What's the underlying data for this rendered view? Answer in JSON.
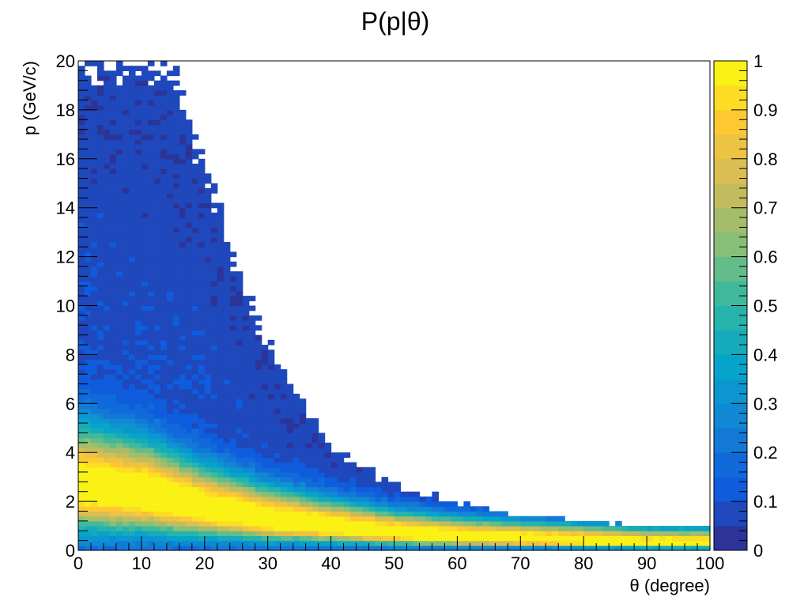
{
  "chart_data": {
    "type": "heatmap",
    "title": "P(p|θ)",
    "xlabel": "θ (degree)",
    "ylabel": "p (GeV/c)",
    "xlim": [
      0,
      100
    ],
    "ylim": [
      0,
      20
    ],
    "x_ticks": [
      0,
      10,
      20,
      30,
      40,
      50,
      60,
      70,
      80,
      90,
      100
    ],
    "y_ticks": [
      0,
      2,
      4,
      6,
      8,
      10,
      12,
      14,
      16,
      18,
      20
    ],
    "colorbar": {
      "min": 0,
      "max": 1,
      "ticks": [
        0,
        0.1,
        0.2,
        0.3,
        0.4,
        0.5,
        0.6,
        0.7,
        0.8,
        0.9,
        1
      ],
      "tick_labels": [
        "0",
        "0.1",
        "0.2",
        "0.3",
        "0.4",
        "0.5",
        "0.6",
        "0.7",
        "0.8",
        "0.9",
        "1"
      ],
      "levels": 20,
      "colormap": "kBird"
    },
    "bins": {
      "x": 100,
      "y": 100
    },
    "grid": false,
    "description_of_values": {
      "peak_momentum_at_theta": [
        {
          "theta": 0,
          "p": 2.6
        },
        {
          "theta": 10,
          "p": 2.3
        },
        {
          "theta": 20,
          "p": 1.7
        },
        {
          "theta": 30,
          "p": 1.25
        },
        {
          "theta": 40,
          "p": 0.95
        },
        {
          "theta": 50,
          "p": 0.7
        },
        {
          "theta": 60,
          "p": 0.55
        },
        {
          "theta": 70,
          "p": 0.45
        },
        {
          "theta": 80,
          "p": 0.38
        },
        {
          "theta": 90,
          "p": 0.3
        },
        {
          "theta": 100,
          "p": 0.28
        }
      ],
      "max_populated_p_at_theta": [
        {
          "theta": 0,
          "p": 20
        },
        {
          "theta": 10,
          "p": 20
        },
        {
          "theta": 15,
          "p": 19.5
        },
        {
          "theta": 20,
          "p": 15.5
        },
        {
          "theta": 25,
          "p": 11.5
        },
        {
          "theta": 30,
          "p": 8.3
        },
        {
          "theta": 35,
          "p": 6.2
        },
        {
          "theta": 40,
          "p": 4.2
        },
        {
          "theta": 45,
          "p": 3.4
        },
        {
          "theta": 50,
          "p": 2.6
        },
        {
          "theta": 60,
          "p": 2.0
        },
        {
          "theta": 70,
          "p": 1.4
        },
        {
          "theta": 80,
          "p": 1.2
        },
        {
          "theta": 90,
          "p": 1.0
        },
        {
          "theta": 100,
          "p": 1.0
        }
      ]
    }
  }
}
